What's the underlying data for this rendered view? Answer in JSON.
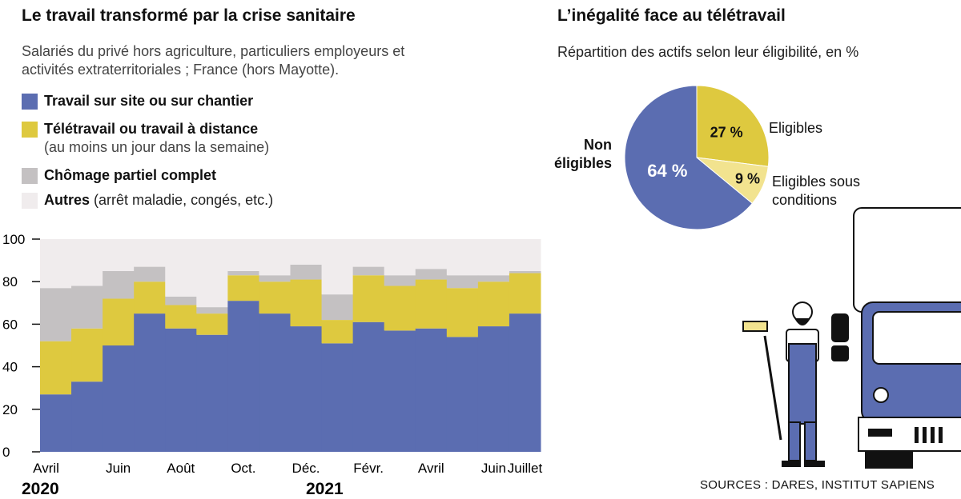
{
  "chart_data": [
    {
      "type": "stacked-step",
      "title": "Le travail transformé par la crise sanitaire",
      "subtitle": "Salariés du privé hors agriculture, particuliers employeurs et activités extraterritoriales ; France (hors Mayotte).",
      "categories": [
        "Avril",
        null,
        "Juin",
        null,
        "Août",
        null,
        "Oct.",
        null,
        "Déc.",
        null,
        "Févr.",
        null,
        "Avril",
        null,
        "Juin",
        "Juillet"
      ],
      "annotations": [
        "2020",
        "2021"
      ],
      "series": [
        {
          "name": "Travail sur site ou sur chantier",
          "color": "#5b6db1",
          "values": [
            27,
            33,
            50,
            65,
            58,
            55,
            71,
            65,
            59,
            51,
            61,
            57,
            58,
            54,
            59,
            65
          ]
        },
        {
          "name": "Télétravail ou travail à distance",
          "note": "(au moins un jour dans la semaine)",
          "color": "#dec93f",
          "values": [
            25,
            25,
            22,
            15,
            11,
            10,
            12,
            15,
            22,
            11,
            22,
            21,
            23,
            23,
            21,
            19
          ]
        },
        {
          "name": "Chômage partiel complet",
          "color": "#c4c1c2",
          "values": [
            25,
            20,
            13,
            7,
            4,
            3,
            2,
            3,
            7,
            12,
            4,
            5,
            5,
            6,
            3,
            1
          ]
        },
        {
          "name": "Autres",
          "note": "(arrêt maladie, congés, etc.)",
          "color": "#f0eced",
          "values": [
            23,
            22,
            15,
            13,
            27,
            32,
            15,
            17,
            12,
            26,
            13,
            17,
            14,
            17,
            17,
            15
          ]
        }
      ],
      "ylim": [
        0,
        100
      ],
      "yticks": [
        0,
        20,
        40,
        60,
        80,
        100
      ]
    },
    {
      "type": "pie",
      "title": "L’inégalité face au télétravail",
      "subtitle": "Répartition des actifs selon leur éligibilité, en %",
      "categories": [
        "Eligibles",
        "Eligibles sous conditions",
        "Non éligibles"
      ],
      "values": [
        27,
        9,
        64
      ],
      "value_labels": [
        "27 %",
        "9 %",
        "64 %"
      ],
      "colors": [
        "#dec93f",
        "#f2e38f",
        "#5b6db1"
      ]
    },
    {
      "type": "note",
      "text": "SOURCES : DARES, INSTITUT SAPIENS"
    }
  ]
}
